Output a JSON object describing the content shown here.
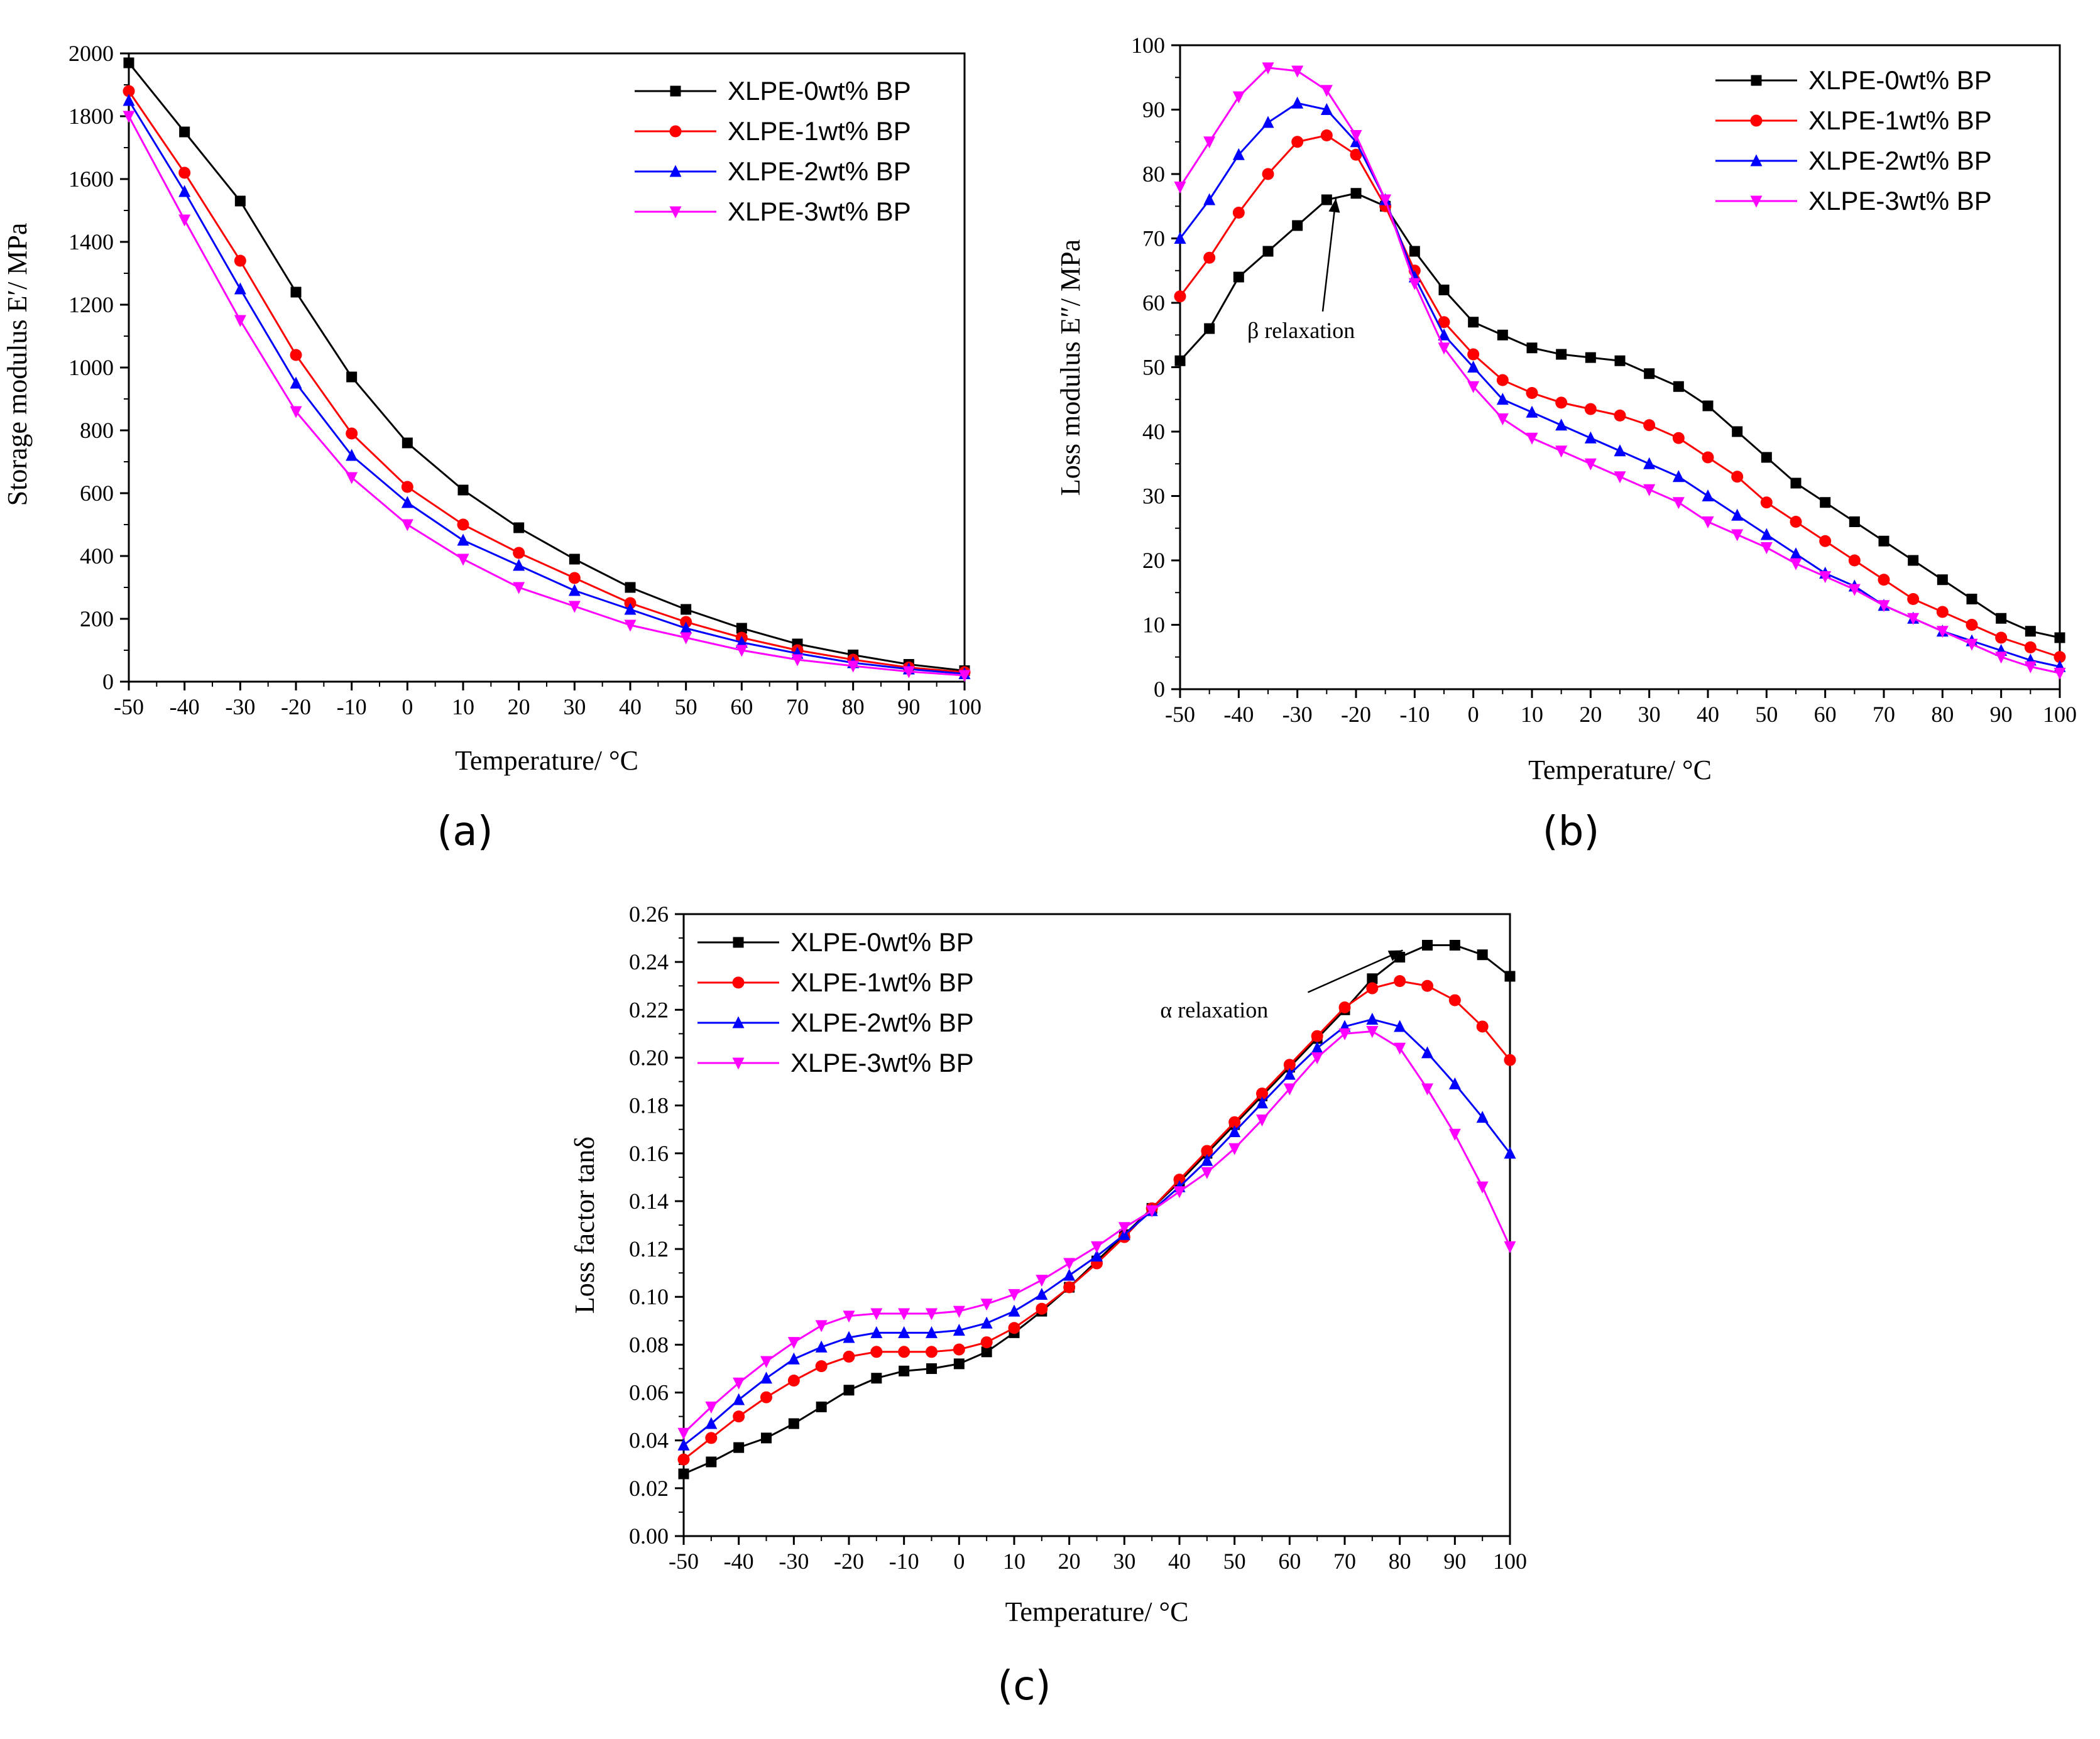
{
  "colors": {
    "XLPE-0wt% BP": "#000000",
    "XLPE-1wt% BP": "#ff0000",
    "XLPE-2wt% BP": "#0000ff",
    "XLPE-3wt% BP": "#ff00ff"
  },
  "chart_data": [
    {
      "type": "line",
      "panel_label": "(a)",
      "xlabel": "Temperature/ °C",
      "ylabel": "Storage modulus E′/ MPa",
      "xlim": [
        -50,
        100
      ],
      "ylim": [
        0,
        2000
      ],
      "xticks": [
        -50,
        -40,
        -30,
        -20,
        -10,
        0,
        10,
        20,
        30,
        40,
        50,
        60,
        70,
        80,
        90,
        100
      ],
      "yticks": [
        0,
        200,
        400,
        600,
        800,
        1000,
        1200,
        1400,
        1600,
        1800,
        2000
      ],
      "ytick_decimals": 0,
      "legend": "top-right",
      "x": [
        -50,
        -40,
        -30,
        -20,
        -10,
        0,
        10,
        20,
        30,
        40,
        50,
        60,
        70,
        80,
        90,
        100
      ],
      "series": [
        {
          "name": "XLPE-0wt% BP",
          "marker": "square",
          "values": [
            1970,
            1750,
            1530,
            1240,
            970,
            760,
            610,
            490,
            390,
            300,
            230,
            170,
            120,
            85,
            55,
            35
          ]
        },
        {
          "name": "XLPE-1wt% BP",
          "marker": "circle",
          "values": [
            1880,
            1620,
            1340,
            1040,
            790,
            620,
            500,
            410,
            330,
            250,
            190,
            140,
            100,
            70,
            45,
            30
          ]
        },
        {
          "name": "XLPE-2wt% BP",
          "marker": "triangle-up",
          "values": [
            1850,
            1560,
            1250,
            950,
            720,
            570,
            450,
            370,
            290,
            230,
            170,
            125,
            90,
            60,
            40,
            25
          ]
        },
        {
          "name": "XLPE-3wt% BP",
          "marker": "triangle-down",
          "values": [
            1800,
            1470,
            1150,
            860,
            650,
            500,
            390,
            300,
            240,
            180,
            140,
            100,
            70,
            50,
            32,
            20
          ]
        }
      ]
    },
    {
      "type": "line",
      "panel_label": "(b)",
      "xlabel": "Temperature/ °C",
      "ylabel": "Loss modulus E″/ MPa",
      "xlim": [
        -50,
        100
      ],
      "ylim": [
        0,
        100
      ],
      "xticks": [
        -50,
        -40,
        -30,
        -20,
        -10,
        0,
        10,
        20,
        30,
        40,
        50,
        60,
        70,
        80,
        90,
        100
      ],
      "yticks": [
        0,
        10,
        20,
        30,
        40,
        50,
        60,
        70,
        80,
        90,
        100
      ],
      "ytick_decimals": 0,
      "legend": "top-right",
      "annotation": {
        "text": "β relaxation",
        "x": -23,
        "y": 77
      },
      "x": [
        -50,
        -45,
        -40,
        -35,
        -30,
        -25,
        -20,
        -15,
        -10,
        -5,
        0,
        5,
        10,
        15,
        20,
        25,
        30,
        35,
        40,
        45,
        50,
        55,
        60,
        65,
        70,
        75,
        80,
        85,
        90,
        95,
        100
      ],
      "series": [
        {
          "name": "XLPE-0wt% BP",
          "marker": "square",
          "values": [
            51,
            56,
            64,
            68,
            72,
            76,
            77,
            75,
            68,
            62,
            57,
            55,
            53,
            52,
            51.5,
            51,
            49,
            47,
            44,
            40,
            36,
            32,
            29,
            26,
            23,
            20,
            17,
            14,
            11,
            9,
            8
          ]
        },
        {
          "name": "XLPE-1wt% BP",
          "marker": "circle",
          "values": [
            61,
            67,
            74,
            80,
            85,
            86,
            83,
            75,
            65,
            57,
            52,
            48,
            46,
            44.5,
            43.5,
            42.5,
            41,
            39,
            36,
            33,
            29,
            26,
            23,
            20,
            17,
            14,
            12,
            10,
            8,
            6.5,
            5
          ]
        },
        {
          "name": "XLPE-2wt% BP",
          "marker": "triangle-up",
          "values": [
            70,
            76,
            83,
            88,
            91,
            90,
            85,
            76,
            64,
            55,
            50,
            45,
            43,
            41,
            39,
            37,
            35,
            33,
            30,
            27,
            24,
            21,
            18,
            16,
            13,
            11,
            9,
            7.5,
            6,
            4.5,
            3.5
          ]
        },
        {
          "name": "XLPE-3wt% BP",
          "marker": "triangle-down",
          "values": [
            78,
            85,
            92,
            96.5,
            96,
            93,
            86,
            76,
            63,
            53,
            47,
            42,
            39,
            37,
            35,
            33,
            31,
            29,
            26,
            24,
            22,
            19.5,
            17.5,
            15.5,
            13,
            11,
            9,
            7,
            5,
            3.5,
            2.5
          ]
        }
      ]
    },
    {
      "type": "line",
      "panel_label": "(c)",
      "xlabel": "Temperature/ °C",
      "ylabel": "Loss factor tanδ",
      "xlim": [
        -50,
        100
      ],
      "ylim": [
        0,
        0.26
      ],
      "xticks": [
        -50,
        -40,
        -30,
        -20,
        -10,
        0,
        10,
        20,
        30,
        40,
        50,
        60,
        70,
        80,
        90,
        100
      ],
      "yticks": [
        0.0,
        0.02,
        0.04,
        0.06,
        0.08,
        0.1,
        0.12,
        0.14,
        0.16,
        0.18,
        0.2,
        0.22,
        0.24,
        0.26
      ],
      "ytick_decimals": 2,
      "legend": "top-left",
      "annotation": {
        "text": "α relaxation",
        "x": 81,
        "y": 0.247
      },
      "x": [
        -50,
        -45,
        -40,
        -35,
        -30,
        -25,
        -20,
        -15,
        -10,
        -5,
        0,
        5,
        10,
        15,
        20,
        25,
        30,
        35,
        40,
        45,
        50,
        55,
        60,
        65,
        70,
        75,
        80,
        85,
        90,
        95,
        100
      ],
      "series": [
        {
          "name": "XLPE-0wt% BP",
          "marker": "square",
          "values": [
            0.026,
            0.031,
            0.037,
            0.041,
            0.047,
            0.054,
            0.061,
            0.066,
            0.069,
            0.07,
            0.072,
            0.077,
            0.085,
            0.094,
            0.104,
            0.115,
            0.126,
            0.137,
            0.148,
            0.16,
            0.172,
            0.184,
            0.196,
            0.208,
            0.22,
            0.233,
            0.242,
            0.247,
            0.247,
            0.243,
            0.234
          ]
        },
        {
          "name": "XLPE-1wt% BP",
          "marker": "circle",
          "values": [
            0.032,
            0.041,
            0.05,
            0.058,
            0.065,
            0.071,
            0.075,
            0.077,
            0.077,
            0.077,
            0.078,
            0.081,
            0.087,
            0.095,
            0.104,
            0.114,
            0.125,
            0.137,
            0.149,
            0.161,
            0.173,
            0.185,
            0.197,
            0.209,
            0.221,
            0.229,
            0.232,
            0.23,
            0.224,
            0.213,
            0.199
          ]
        },
        {
          "name": "XLPE-2wt% BP",
          "marker": "triangle-up",
          "values": [
            0.038,
            0.047,
            0.057,
            0.066,
            0.074,
            0.079,
            0.083,
            0.085,
            0.085,
            0.085,
            0.086,
            0.089,
            0.094,
            0.101,
            0.109,
            0.117,
            0.126,
            0.136,
            0.146,
            0.157,
            0.169,
            0.181,
            0.193,
            0.204,
            0.213,
            0.216,
            0.213,
            0.202,
            0.189,
            0.175,
            0.16
          ]
        },
        {
          "name": "XLPE-3wt% BP",
          "marker": "triangle-down",
          "values": [
            0.043,
            0.054,
            0.064,
            0.073,
            0.081,
            0.088,
            0.092,
            0.093,
            0.093,
            0.093,
            0.094,
            0.097,
            0.101,
            0.107,
            0.114,
            0.121,
            0.129,
            0.136,
            0.144,
            0.152,
            0.162,
            0.174,
            0.187,
            0.2,
            0.21,
            0.211,
            0.204,
            0.187,
            0.168,
            0.146,
            0.121
          ]
        }
      ]
    }
  ]
}
